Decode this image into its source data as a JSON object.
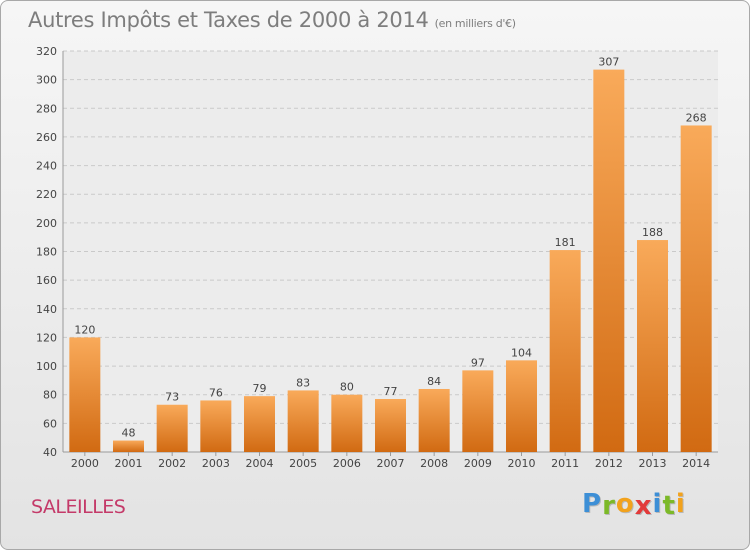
{
  "title": "Autres Impôts et Taxes de 2000 à 2014",
  "subtitle": "(en milliers d'€)",
  "commune": "SALEILLES",
  "logo": {
    "letters": [
      "P",
      "r",
      "o",
      "x",
      "i",
      "t",
      "i"
    ],
    "colors": [
      "#3d8fd6",
      "#7cb928",
      "#f2a21c",
      "#e23a3a",
      "#3d8fd6",
      "#7cb928",
      "#f2a21c"
    ]
  },
  "colors": {
    "bar_light": "#f9aa5a",
    "bar_dark": "#d16a12",
    "title": "#7d7d7d",
    "commune": "#c43a69"
  },
  "chart_data": {
    "type": "bar",
    "title": "Autres Impôts et Taxes de 2000 à 2014",
    "subtitle": "(en milliers d'€)",
    "xlabel": "",
    "ylabel": "",
    "categories": [
      "2000",
      "2001",
      "2002",
      "2003",
      "2004",
      "2005",
      "2006",
      "2007",
      "2008",
      "2009",
      "2010",
      "2011",
      "2012",
      "2013",
      "2014"
    ],
    "values": [
      120,
      48,
      73,
      76,
      79,
      83,
      80,
      77,
      84,
      97,
      104,
      181,
      307,
      188,
      268
    ],
    "ylim": [
      40,
      320
    ],
    "yticks": [
      40,
      60,
      80,
      100,
      120,
      140,
      160,
      180,
      200,
      220,
      240,
      260,
      280,
      300,
      320
    ],
    "grid": true,
    "legend": "none"
  }
}
